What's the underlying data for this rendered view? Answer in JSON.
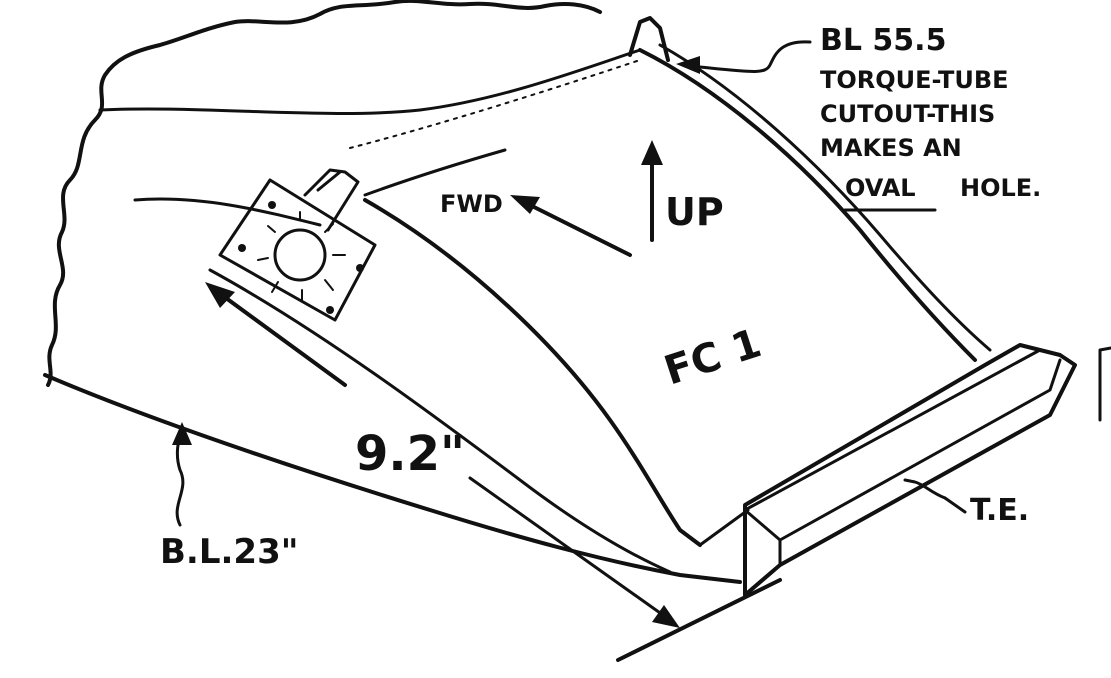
{
  "labels": {
    "bl_55": "BL 55.5",
    "torque_tube": "TORQUE-TUBE",
    "cutout": "CUTOUT-THIS",
    "makes_an": "MAKES AN",
    "oval": "OVAL",
    "hole": "HOLE.",
    "fwd": "FWD",
    "up": "UP",
    "part": "FC 1",
    "dimension": "9.2\"",
    "bl_23": "B.L.23\"",
    "trailing_edge": "T.E."
  },
  "colors": {
    "ink": "#111111",
    "paper": "#ffffff"
  }
}
